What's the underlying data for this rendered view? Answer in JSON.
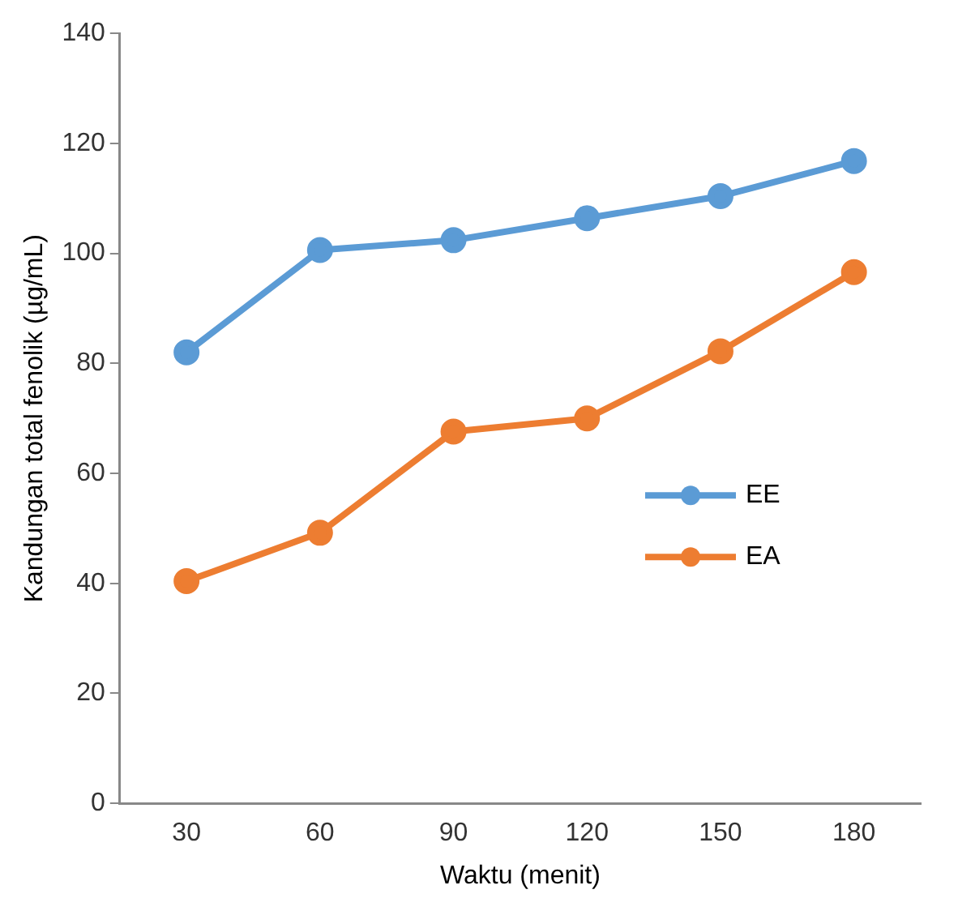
{
  "chart_data": {
    "type": "line",
    "xlabel": "Waktu (menit)",
    "ylabel": "Kandungan total fenolik (µg/mL)",
    "categories": [
      "30",
      "60",
      "90",
      "120",
      "150",
      "180"
    ],
    "series": [
      {
        "name": "EE",
        "color": "#5b9bd5",
        "values": [
          82,
          100.6,
          102.4,
          106.4,
          110.4,
          116.8
        ]
      },
      {
        "name": "EA",
        "color": "#ed7d31",
        "values": [
          40.4,
          49.2,
          67.6,
          70,
          82.2,
          96.6
        ]
      }
    ],
    "ylim": [
      0,
      140
    ],
    "yticks": [
      0,
      20,
      40,
      60,
      80,
      100,
      120,
      140
    ],
    "grid": false,
    "legend": "right",
    "marker": "circle",
    "line_style": "solid"
  }
}
